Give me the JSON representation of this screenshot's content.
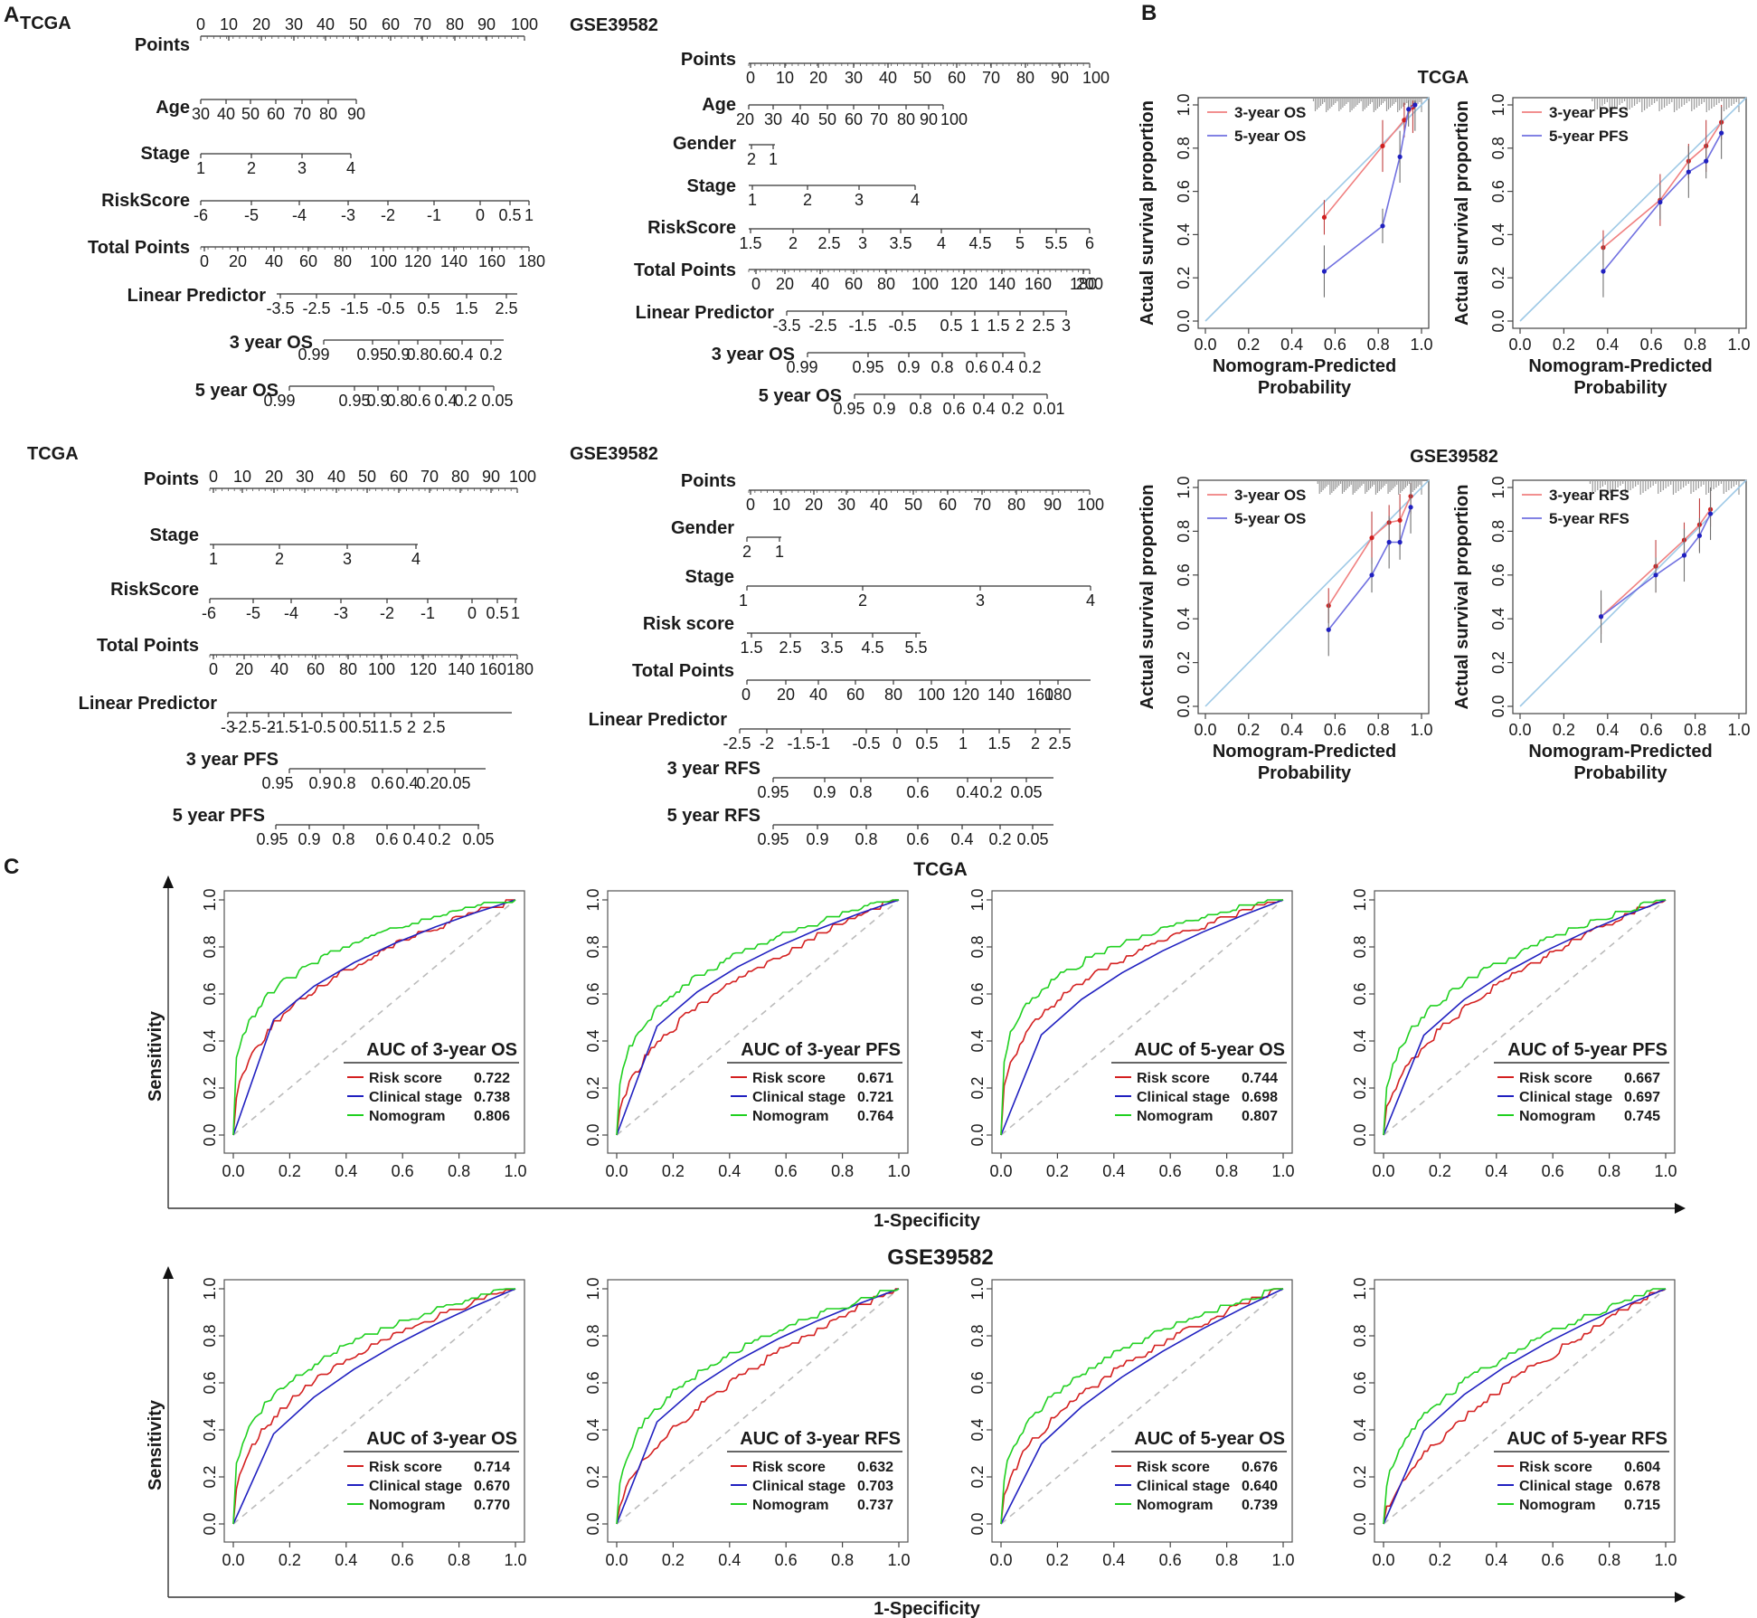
{
  "panel_labels": {
    "a": "A",
    "b": "B",
    "c": "C"
  },
  "chart_data": [
    {
      "type": "nomogram",
      "panel": "A",
      "title": "TCGA",
      "rows": [
        {
          "label": "Points",
          "ticks": [
            "0",
            "10",
            "20",
            "30",
            "40",
            "50",
            "60",
            "70",
            "80",
            "90",
            "100"
          ]
        },
        {
          "label": "Age",
          "ticks": [
            "30",
            "40",
            "50",
            "60",
            "70",
            "80",
            "90"
          ]
        },
        {
          "label": "Stage",
          "ticks": [
            "1",
            "2",
            "3",
            "4"
          ]
        },
        {
          "label": "RiskScore",
          "ticks": [
            "-6",
            "-5",
            "-4",
            "-3",
            "-2",
            "-1",
            "0",
            "0.5",
            "1"
          ]
        },
        {
          "label": "Total Points",
          "ticks": [
            "0",
            "20",
            "40",
            "60",
            "80",
            "100",
            "120",
            "140",
            "160",
            "180"
          ]
        },
        {
          "label": "Linear Predictor",
          "ticks": [
            "-3.5",
            "-2.5",
            "-1.5",
            "-0.5",
            "0.5",
            "1.5",
            "2.5"
          ]
        },
        {
          "label": "3 year OS",
          "ticks": [
            "0.99",
            "0.95",
            "0.9",
            "0.8",
            "0.6",
            "0.4",
            "0.2"
          ]
        },
        {
          "label": "5 year OS",
          "ticks": [
            "0.99",
            "0.95",
            "0.9",
            "0.8",
            "0.6",
            "0.4",
            "0.2",
            "0.05"
          ]
        }
      ]
    },
    {
      "type": "nomogram",
      "panel": "A",
      "title": "GSE39582",
      "rows": [
        {
          "label": "Points",
          "ticks": [
            "0",
            "10",
            "20",
            "30",
            "40",
            "50",
            "60",
            "70",
            "80",
            "90",
            "100"
          ]
        },
        {
          "label": "Age",
          "ticks": [
            "20",
            "30",
            "40",
            "50",
            "60",
            "70",
            "80",
            "90",
            "100"
          ]
        },
        {
          "label": "Gender",
          "ticks": [
            "2",
            "1"
          ]
        },
        {
          "label": "Stage",
          "ticks": [
            "1",
            "2",
            "3",
            "4"
          ]
        },
        {
          "label": "RiskScore",
          "ticks": [
            "1.5",
            "2",
            "2.5",
            "3",
            "3.5",
            "4",
            "4.5",
            "5",
            "5.5",
            "6"
          ]
        },
        {
          "label": "Total Points",
          "ticks": [
            "0",
            "20",
            "40",
            "60",
            "80",
            "100",
            "120",
            "140",
            "160",
            "180",
            "200"
          ]
        },
        {
          "label": "Linear Predictor",
          "ticks": [
            "-3.5",
            "-2.5",
            "-1.5",
            "-0.5",
            "0.5",
            "1",
            "1.5",
            "2",
            "2.5",
            "3"
          ]
        },
        {
          "label": "3 year OS",
          "ticks": [
            "0.99",
            "0.95",
            "0.9",
            "0.8",
            "0.6",
            "0.4",
            "0.2"
          ]
        },
        {
          "label": "5 year OS",
          "ticks": [
            "0.95",
            "0.9",
            "0.8",
            "0.6",
            "0.4",
            "0.2",
            "0.01"
          ]
        }
      ]
    },
    {
      "type": "nomogram",
      "panel": "A",
      "title": "TCGA",
      "rows": [
        {
          "label": "Points",
          "ticks": [
            "0",
            "10",
            "20",
            "30",
            "40",
            "50",
            "60",
            "70",
            "80",
            "90",
            "100"
          ]
        },
        {
          "label": "Stage",
          "ticks": [
            "1",
            "2",
            "3",
            "4"
          ]
        },
        {
          "label": "RiskScore",
          "ticks": [
            "-6",
            "-5",
            "-4",
            "-3",
            "-2",
            "-1",
            "0",
            "0.5",
            "1"
          ]
        },
        {
          "label": "Total Points",
          "ticks": [
            "0",
            "20",
            "40",
            "60",
            "80",
            "100",
            "120",
            "140",
            "160",
            "180"
          ]
        },
        {
          "label": "Linear Predictor",
          "ticks": [
            "-3",
            "-2.5",
            "-2",
            "-1.5",
            "-1",
            "-0.5",
            "0",
            "0.5",
            "1",
            "1.5",
            "2",
            "2.5"
          ]
        },
        {
          "label": "3 year PFS",
          "ticks": [
            "0.95",
            "0.9",
            "0.8",
            "0.6",
            "0.4",
            "0.2",
            "0.05"
          ]
        },
        {
          "label": "5 year PFS",
          "ticks": [
            "0.95",
            "0.9",
            "0.8",
            "0.6",
            "0.4",
            "0.2",
            "0.05"
          ]
        }
      ]
    },
    {
      "type": "nomogram",
      "panel": "A",
      "title": "GSE39582",
      "rows": [
        {
          "label": "Points",
          "ticks": [
            "0",
            "10",
            "20",
            "30",
            "40",
            "50",
            "60",
            "70",
            "80",
            "90",
            "100"
          ]
        },
        {
          "label": "Gender",
          "ticks": [
            "2",
            "1"
          ]
        },
        {
          "label": "Stage",
          "ticks": [
            "1",
            "2",
            "3",
            "4"
          ]
        },
        {
          "label": "Risk score",
          "ticks": [
            "1.5",
            "2.5",
            "3.5",
            "4.5",
            "5.5"
          ]
        },
        {
          "label": "Total Points",
          "ticks": [
            "0",
            "20",
            "40",
            "60",
            "80",
            "100",
            "120",
            "140",
            "160",
            "180"
          ]
        },
        {
          "label": "Linear Predictor",
          "ticks": [
            "-2.5",
            "-2",
            "-1.5",
            "-1",
            "-0.5",
            "0",
            "0.5",
            "1",
            "1.5",
            "2",
            "2.5"
          ]
        },
        {
          "label": "3 year RFS",
          "ticks": [
            "0.95",
            "0.9",
            "0.8",
            "0.6",
            "0.4",
            "0.2",
            "0.05"
          ]
        },
        {
          "label": "5 year RFS",
          "ticks": [
            "0.95",
            "0.9",
            "0.8",
            "0.6",
            "0.4",
            "0.2",
            "0.05"
          ]
        }
      ]
    },
    {
      "type": "line",
      "panel": "B",
      "subtype": "calibration",
      "title": "TCGA",
      "xlabel": [
        "Nomogram-Predicted",
        "Probability"
      ],
      "ylabel": "Actual survival proportion",
      "xlim": [
        0,
        1
      ],
      "ylim": [
        0,
        1
      ],
      "ticks": [
        "0.0",
        "0.2",
        "0.4",
        "0.6",
        "0.8",
        "1.0"
      ],
      "series": [
        {
          "name": "3-year OS",
          "color": "#f08080",
          "x": [
            0.55,
            0.82,
            0.92,
            0.96
          ],
          "y": [
            0.48,
            0.81,
            0.93,
            0.99
          ]
        },
        {
          "name": "5-year OS",
          "color": "#7070e0",
          "x": [
            0.55,
            0.82,
            0.9,
            0.94,
            0.97
          ],
          "y": [
            0.23,
            0.44,
            0.76,
            0.98,
            1.0
          ]
        }
      ]
    },
    {
      "type": "line",
      "panel": "B",
      "subtype": "calibration",
      "title": "",
      "xlabel": [
        "Nomogram-Predicted",
        "Probability"
      ],
      "ylabel": "Actual survival proportion",
      "xlim": [
        0,
        1
      ],
      "ylim": [
        0,
        1
      ],
      "ticks": [
        "0.0",
        "0.2",
        "0.4",
        "0.6",
        "0.8",
        "1.0"
      ],
      "series": [
        {
          "name": "3-year PFS",
          "color": "#f08080",
          "x": [
            0.38,
            0.64,
            0.77,
            0.85,
            0.92
          ],
          "y": [
            0.34,
            0.56,
            0.74,
            0.81,
            0.92
          ]
        },
        {
          "name": "5-year PFS",
          "color": "#7070e0",
          "x": [
            0.38,
            0.64,
            0.77,
            0.85,
            0.92
          ],
          "y": [
            0.23,
            0.55,
            0.69,
            0.74,
            0.87
          ]
        }
      ]
    },
    {
      "type": "line",
      "panel": "B",
      "subtype": "calibration",
      "title": "GSE39582",
      "xlabel": [
        "Nomogram-Predicted",
        "Probability"
      ],
      "ylabel": "Actual survival proportion",
      "xlim": [
        0,
        1
      ],
      "ylim": [
        0,
        1
      ],
      "ticks": [
        "0.0",
        "0.2",
        "0.4",
        "0.6",
        "0.8",
        "1.0"
      ],
      "series": [
        {
          "name": "3-year OS",
          "color": "#f08080",
          "x": [
            0.57,
            0.77,
            0.85,
            0.9,
            0.95
          ],
          "y": [
            0.46,
            0.77,
            0.84,
            0.85,
            0.96
          ]
        },
        {
          "name": "5-year OS",
          "color": "#7070e0",
          "x": [
            0.57,
            0.77,
            0.85,
            0.9,
            0.95
          ],
          "y": [
            0.35,
            0.6,
            0.75,
            0.75,
            0.91
          ]
        }
      ]
    },
    {
      "type": "line",
      "panel": "B",
      "subtype": "calibration",
      "title": "",
      "xlabel": [
        "Nomogram-Predicted",
        "Probability"
      ],
      "ylabel": "Actual survival proportion",
      "xlim": [
        0,
        1
      ],
      "ylim": [
        0,
        1
      ],
      "ticks": [
        "0.0",
        "0.2",
        "0.4",
        "0.6",
        "0.8",
        "1.0"
      ],
      "series": [
        {
          "name": "3-year RFS",
          "color": "#f08080",
          "x": [
            0.37,
            0.62,
            0.75,
            0.82,
            0.87
          ],
          "y": [
            0.41,
            0.64,
            0.76,
            0.83,
            0.9
          ]
        },
        {
          "name": "5-year RFS",
          "color": "#7070e0",
          "x": [
            0.37,
            0.62,
            0.75,
            0.82,
            0.87
          ],
          "y": [
            0.41,
            0.6,
            0.69,
            0.78,
            0.88
          ]
        }
      ]
    },
    {
      "type": "roc",
      "panel": "C",
      "group_title": "TCGA",
      "xlabel": "1-Specificity",
      "ylabel": "Sensitivity",
      "ticks": [
        "0.0",
        "0.2",
        "0.4",
        "0.6",
        "0.8",
        "1.0"
      ],
      "plots": [
        {
          "auc_title": "AUC of 3-year OS",
          "entries": [
            {
              "name": "Risk score",
              "auc": "0.722",
              "color": "#d42020"
            },
            {
              "name": "Clinical stage",
              "auc": "0.738",
              "color": "#2020c0"
            },
            {
              "name": "Nomogram",
              "auc": "0.806",
              "color": "#20d020"
            }
          ]
        },
        {
          "auc_title": "AUC of 3-year PFS",
          "entries": [
            {
              "name": "Risk score",
              "auc": "0.671",
              "color": "#d42020"
            },
            {
              "name": "Clinical stage",
              "auc": "0.721",
              "color": "#2020c0"
            },
            {
              "name": "Nomogram",
              "auc": "0.764",
              "color": "#20d020"
            }
          ]
        },
        {
          "auc_title": "AUC of 5-year OS",
          "entries": [
            {
              "name": "Risk score",
              "auc": "0.744",
              "color": "#d42020"
            },
            {
              "name": "Clinical stage",
              "auc": "0.698",
              "color": "#2020c0"
            },
            {
              "name": "Nomogram",
              "auc": "0.807",
              "color": "#20d020"
            }
          ]
        },
        {
          "auc_title": "AUC of 5-year PFS",
          "entries": [
            {
              "name": "Risk score",
              "auc": "0.667",
              "color": "#d42020"
            },
            {
              "name": "Clinical stage",
              "auc": "0.697",
              "color": "#2020c0"
            },
            {
              "name": "Nomogram",
              "auc": "0.745",
              "color": "#20d020"
            }
          ]
        }
      ]
    },
    {
      "type": "roc",
      "panel": "C",
      "group_title": "GSE39582",
      "xlabel": "1-Specificity",
      "ylabel": "Sensitivity",
      "ticks": [
        "0.0",
        "0.2",
        "0.4",
        "0.6",
        "0.8",
        "1.0"
      ],
      "plots": [
        {
          "auc_title": "AUC of 3-year OS",
          "entries": [
            {
              "name": "Risk score",
              "auc": "0.714",
              "color": "#d42020"
            },
            {
              "name": "Clinical stage",
              "auc": "0.670",
              "color": "#2020c0"
            },
            {
              "name": "Nomogram",
              "auc": "0.770",
              "color": "#20d020"
            }
          ]
        },
        {
          "auc_title": "AUC of 3-year RFS",
          "entries": [
            {
              "name": "Risk score",
              "auc": "0.632",
              "color": "#d42020"
            },
            {
              "name": "Clinical stage",
              "auc": "0.703",
              "color": "#2020c0"
            },
            {
              "name": "Nomogram",
              "auc": "0.737",
              "color": "#20d020"
            }
          ]
        },
        {
          "auc_title": "AUC of 5-year OS",
          "entries": [
            {
              "name": "Risk score",
              "auc": "0.676",
              "color": "#d42020"
            },
            {
              "name": "Clinical stage",
              "auc": "0.640",
              "color": "#2020c0"
            },
            {
              "name": "Nomogram",
              "auc": "0.739",
              "color": "#20d020"
            }
          ]
        },
        {
          "auc_title": "AUC of 5-year RFS",
          "entries": [
            {
              "name": "Risk score",
              "auc": "0.604",
              "color": "#d42020"
            },
            {
              "name": "Clinical stage",
              "auc": "0.678",
              "color": "#2020c0"
            },
            {
              "name": "Nomogram",
              "auc": "0.715",
              "color": "#20d020"
            }
          ]
        }
      ]
    }
  ]
}
